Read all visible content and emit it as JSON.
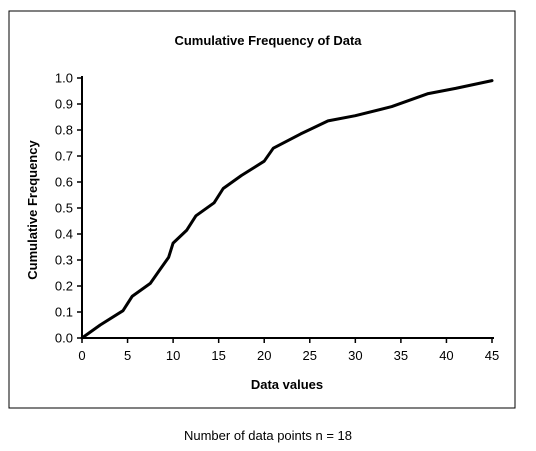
{
  "chart_data": {
    "type": "line",
    "title": "Cumulative Frequency of Data",
    "xlabel": "Data values",
    "ylabel": "Cumulative Frequency",
    "xlim": [
      0,
      45
    ],
    "ylim": [
      0,
      1.0
    ],
    "x_ticks": [
      "0",
      "5",
      "10",
      "15",
      "20",
      "25",
      "30",
      "35",
      "40",
      "45"
    ],
    "y_ticks": [
      "0.0",
      "0.1",
      "0.2",
      "0.3",
      "0.4",
      "0.5",
      "0.6",
      "0.7",
      "0.8",
      "0.9",
      "1.0"
    ],
    "grid": false,
    "x": [
      0,
      2,
      4.5,
      5.5,
      7.5,
      8.5,
      9.5,
      10,
      11.5,
      12.5,
      14.5,
      15.5,
      17.5,
      20,
      21,
      24,
      27,
      30,
      34,
      38,
      41,
      45
    ],
    "y": [
      0.0,
      0.05,
      0.105,
      0.16,
      0.21,
      0.26,
      0.31,
      0.365,
      0.415,
      0.47,
      0.52,
      0.575,
      0.625,
      0.68,
      0.73,
      0.785,
      0.835,
      0.855,
      0.89,
      0.94,
      0.96,
      0.99
    ]
  },
  "caption": "Number of data points n = 18"
}
